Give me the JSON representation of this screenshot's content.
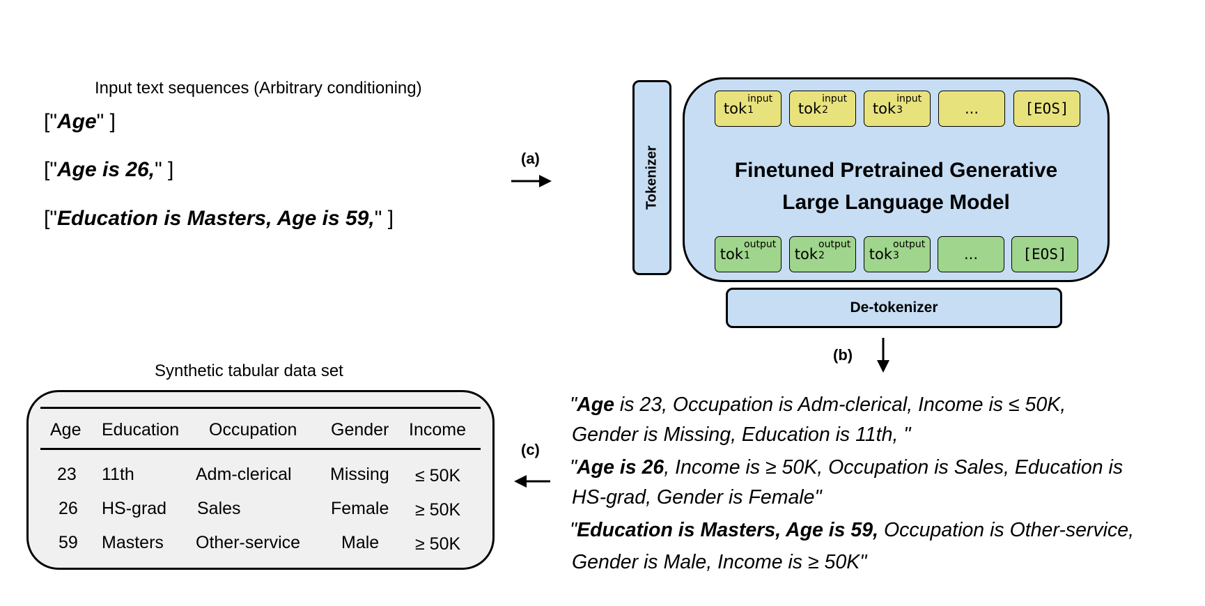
{
  "input": {
    "title": "Input text sequences (Arbitrary conditioning)",
    "sequences": [
      {
        "open": "[\"",
        "text": "Age",
        "close": "\" ]"
      },
      {
        "open": "[\"",
        "text": "Age is 26,",
        "close": "\" ]"
      },
      {
        "open": "[\"",
        "text": "Education is Masters, Age is 59,",
        "close": "\" ]"
      }
    ]
  },
  "arrows": {
    "a": "(a)",
    "b": "(b)",
    "c": "(c)"
  },
  "model": {
    "tokenizer_label": "Tokenizer",
    "title_line1": "Finetuned Pretrained Generative",
    "title_line2": "Large Language Model",
    "detokenizer_label": "De-tokenizer",
    "input_tokens": [
      {
        "base": "tok",
        "sup": "input",
        "sub": "1"
      },
      {
        "base": "tok",
        "sup": "input",
        "sub": "2"
      },
      {
        "base": "tok",
        "sup": "input",
        "sub": "3"
      },
      {
        "text": "..."
      },
      {
        "text": "[EOS]"
      }
    ],
    "output_tokens": [
      {
        "base": "tok",
        "sup": "output",
        "sub": "1"
      },
      {
        "base": "tok",
        "sup": "output",
        "sub": "2"
      },
      {
        "base": "tok",
        "sup": "output",
        "sub": "3"
      },
      {
        "text": "..."
      },
      {
        "text": "[EOS]"
      }
    ],
    "colors": {
      "model": "#c6ddf3",
      "input_token": "#e8e27d",
      "output_token": "#9fd58c"
    }
  },
  "outputs": [
    {
      "line1_bold": "Age",
      "line1_rest": " is 23, Occupation is Adm-clerical, Income is  ≤ 50K,",
      "line2": "Gender is Missing, Education is 11th, \""
    },
    {
      "line1_bold": "Age is 26",
      "line1_rest": ", Income is  ≥ 50K, Occupation is Sales, Education is",
      "line2": "HS-grad, Gender is Female\""
    },
    {
      "line1_bold": "Education is Masters, Age is 59,",
      "line1_rest": " Occupation is Other-service,",
      "line2": "Gender is Male, Income is  ≥ 50K\""
    }
  ],
  "table": {
    "title": "Synthetic tabular data set",
    "columns": [
      "Age",
      "Education",
      "Occupation",
      "Gender",
      "Income"
    ],
    "rows": [
      [
        "23",
        "11th",
        "Adm-clerical",
        "Missing",
        "≤ 50K"
      ],
      [
        "26",
        "HS-grad",
        "Sales",
        "Female",
        "≥ 50K"
      ],
      [
        "59",
        "Masters",
        "Other-service",
        "Male",
        "≥ 50K"
      ]
    ]
  }
}
